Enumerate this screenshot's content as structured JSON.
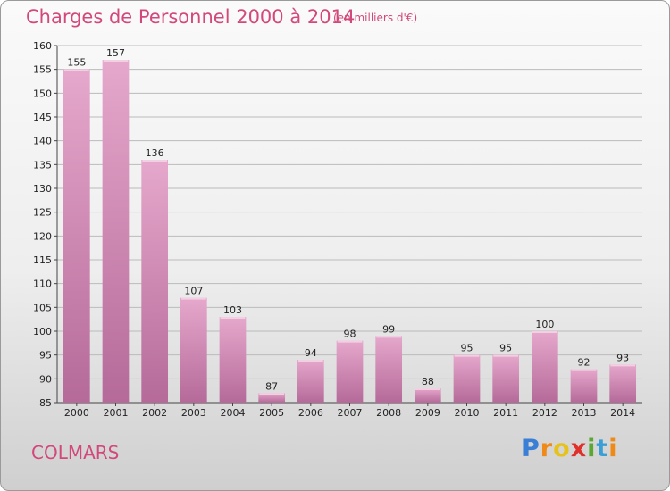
{
  "header": {
    "title": "Charges de Personnel 2000 à 2014",
    "subtitle": "(en milliers d'€)"
  },
  "footer": {
    "commune": "COLMARS",
    "logo_letters": [
      {
        "ch": "P",
        "color": "#3a7fd5"
      },
      {
        "ch": "r",
        "color": "#f08a16"
      },
      {
        "ch": "o",
        "color": "#e6c21a"
      },
      {
        "ch": "x",
        "color": "#e0302a"
      },
      {
        "ch": "i",
        "color": "#5aa832"
      },
      {
        "ch": "t",
        "color": "#3a9fd5"
      },
      {
        "ch": "i",
        "color": "#f08a16"
      }
    ]
  },
  "colors": {
    "bar_light": "#e6a8cc",
    "bar_dark": "#b56a99",
    "grid": "#bbbbbb",
    "accent": "#d2487a"
  },
  "chart_data": {
    "type": "bar",
    "categories": [
      "2000",
      "2001",
      "2002",
      "2003",
      "2004",
      "2005",
      "2006",
      "2007",
      "2008",
      "2009",
      "2010",
      "2011",
      "2012",
      "2013",
      "2014"
    ],
    "values": [
      155,
      157,
      136,
      107,
      103,
      87,
      94,
      98,
      99,
      88,
      95,
      95,
      100,
      92,
      93
    ],
    "ylim": [
      85,
      160
    ],
    "yticks": [
      85,
      90,
      95,
      100,
      105,
      110,
      115,
      120,
      125,
      130,
      135,
      140,
      145,
      150,
      155,
      160
    ],
    "grid": true
  }
}
